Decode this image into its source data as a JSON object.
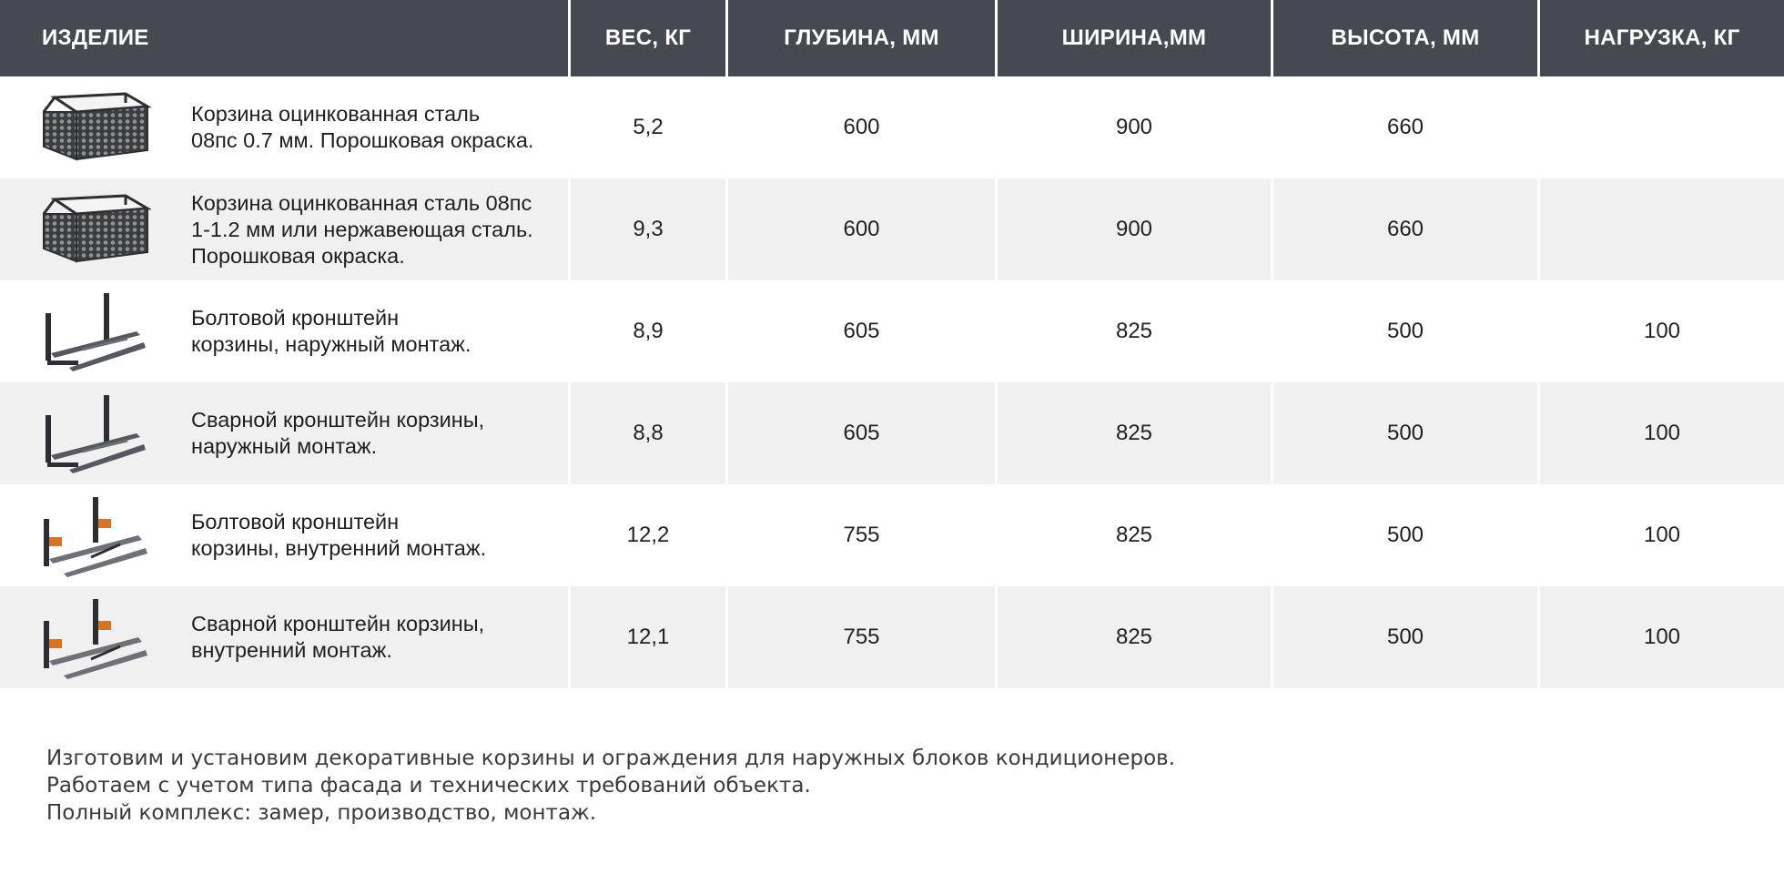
{
  "headers": {
    "product": "ИЗДЕЛИЕ",
    "weight": "ВЕС, КГ",
    "depth": "ГЛУБИНА, ММ",
    "width": "ШИРИНА,ММ",
    "height": "ВЫСОТА, ММ",
    "load": "НАГРУЗКА, КГ"
  },
  "rows": [
    {
      "icon": "basket-icon",
      "name": "Корзина оцинкованная сталь\n08пс 0.7 мм. Порошковая окраска.",
      "weight": "5,2",
      "depth": "600",
      "width": "900",
      "height": "660",
      "load": ""
    },
    {
      "icon": "basket-icon",
      "name": "Корзина оцинкованная сталь 08пс\n1-1.2 мм или нержавеющая сталь.\nПорошковая окраска.",
      "weight": "9,3",
      "depth": "600",
      "width": "900",
      "height": "660",
      "load": ""
    },
    {
      "icon": "bracket-icon",
      "name": "Болтовой кронштейн\nкорзины, наружный монтаж.",
      "weight": "8,9",
      "depth": "605",
      "width": "825",
      "height": "500",
      "load": "100"
    },
    {
      "icon": "bracket-icon",
      "name": "Сварной кронштейн корзины,\nнаружный монтаж.",
      "weight": "8,8",
      "depth": "605",
      "width": "825",
      "height": "500",
      "load": "100"
    },
    {
      "icon": "bracket-inner-icon",
      "name": "Болтовой кронштейн\nкорзины, внутренний монтаж.",
      "weight": "12,2",
      "depth": "755",
      "width": "825",
      "height": "500",
      "load": "100"
    },
    {
      "icon": "bracket-inner-icon",
      "name": "Сварной кронштейн корзины,\nвнутренний монтаж.",
      "weight": "12,1",
      "depth": "755",
      "width": "825",
      "height": "500",
      "load": "100"
    }
  ],
  "footer": [
    "Изготовим и установим декоративные корзины и ограждения для наружных блоков кондиционеров.",
    "Работаем с учетом типа фасада и технических требований объекта.",
    "Полный комплекс: замер, производство, монтаж."
  ],
  "colors": {
    "header_bg": "#464950",
    "shade_row": "#f0f0f0",
    "accent_orange": "#d9731f"
  }
}
